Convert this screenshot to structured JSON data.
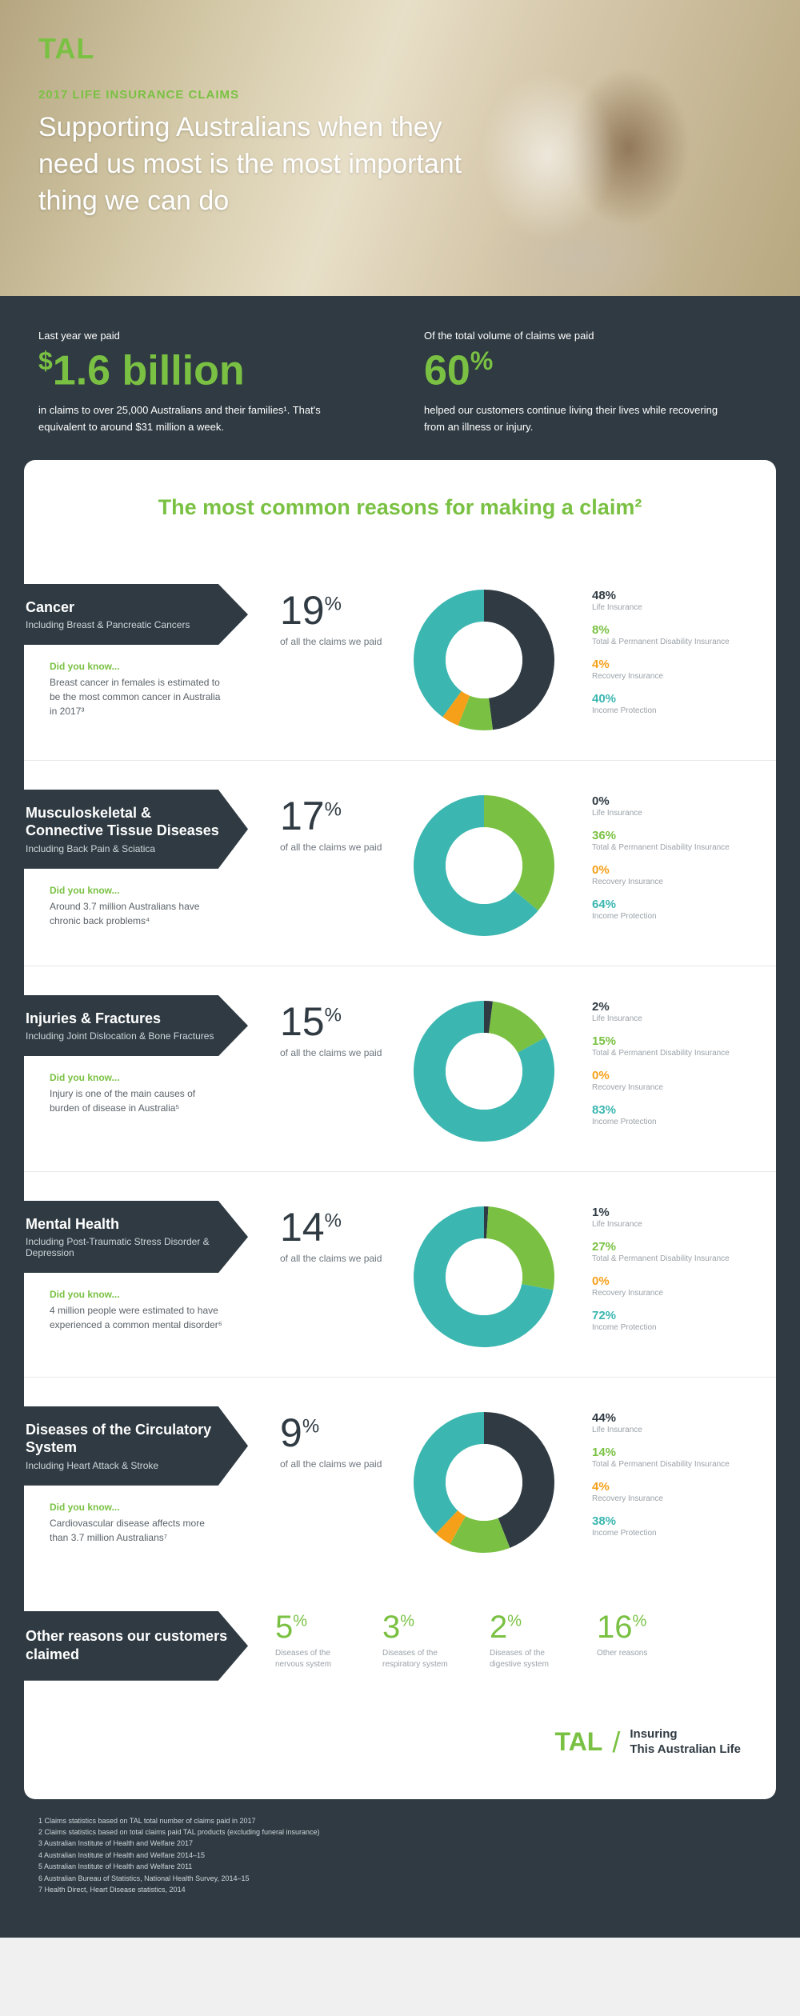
{
  "brand": {
    "name": "TAL",
    "accent": "#7ac143"
  },
  "hero": {
    "eyebrow": "2017 LIFE INSURANCE CLAIMS",
    "title": "Supporting Australians when they need us most is the most important thing we can do"
  },
  "stats_bar": {
    "left": {
      "eyebrow": "Last year we paid",
      "currency": "$",
      "value": "1.6 billion",
      "body": "in claims to over 25,000 Australians and their families¹. That's equivalent to around $31 million a week."
    },
    "right": {
      "eyebrow": "Of the total volume of claims we paid",
      "value": "60",
      "unit": "%",
      "body": "helped our customers continue living their lives while recovering from an illness or injury."
    }
  },
  "card": {
    "title": "The most common reasons for making a claim²",
    "colors": {
      "dark": "#2f3a42",
      "green": "#7ac143",
      "orange": "#f6a01a",
      "teal": "#3bb6b0",
      "hole": "#ffffff"
    },
    "breakdown_labels": {
      "life": "Life Insurance",
      "tpd": "Total & Permanent Disability Insurance",
      "recovery": "Recovery Insurance",
      "income": "Income Protection"
    },
    "pct_sub": "of all the claims we paid",
    "dyk_label": "Did you know...",
    "reasons": [
      {
        "title": "Cancer",
        "subtitle": "Including Breast & Pancreatic Cancers",
        "dyk": "Breast cancer in females is estimated to be the most common cancer in Australia in 2017³",
        "pct": 19,
        "breakdown": {
          "life": 48,
          "tpd": 8,
          "recovery": 4,
          "income": 40
        }
      },
      {
        "title": "Musculoskeletal & Connective Tissue Diseases",
        "subtitle": "Including Back Pain & Sciatica",
        "dyk": "Around 3.7 million Australians have chronic back problems⁴",
        "pct": 17,
        "breakdown": {
          "life": 0,
          "tpd": 36,
          "recovery": 0,
          "income": 64
        }
      },
      {
        "title": "Injuries & Fractures",
        "subtitle": "Including Joint Dislocation & Bone Fractures",
        "dyk": "Injury is one of the main causes of burden of disease in Australia⁵",
        "pct": 15,
        "breakdown": {
          "life": 2,
          "tpd": 15,
          "recovery": 0,
          "income": 83
        }
      },
      {
        "title": "Mental Health",
        "subtitle": "Including Post-Traumatic Stress Disorder & Depression",
        "dyk": "4 million people were estimated to have experienced a common mental disorder⁶",
        "pct": 14,
        "breakdown": {
          "life": 1,
          "tpd": 27,
          "recovery": 0,
          "income": 72
        }
      },
      {
        "title": "Diseases of the Circulatory System",
        "subtitle": "Including Heart Attack & Stroke",
        "dyk": "Cardiovascular disease affects more than 3.7 million Australians⁷",
        "pct": 9,
        "breakdown": {
          "life": 44,
          "tpd": 14,
          "recovery": 4,
          "income": 38
        }
      }
    ],
    "other": {
      "title": "Other reasons our customers claimed",
      "items": [
        {
          "pct": 5,
          "label": "Diseases of the nervous system"
        },
        {
          "pct": 3,
          "label": "Diseases of the respiratory system"
        },
        {
          "pct": 2,
          "label": "Diseases of the digestive system"
        },
        {
          "pct": 16,
          "label": "Other reasons"
        }
      ]
    }
  },
  "footer": {
    "notes": [
      "1   Claims statistics based on TAL total number of claims paid in 2017",
      "2   Claims statistics based on total claims paid TAL products (excluding funeral insurance)",
      "3   Australian Institute of Health and Welfare 2017",
      "4   Australian Institute of Health and Welfare 2014–15",
      "5   Australian Institute of Health and Welfare 2011",
      "6   Australian Bureau of Statistics, National Health Survey, 2014–15",
      "7   Health Direct, Heart Disease statistics, 2014"
    ],
    "tagline1": "Insuring",
    "tagline2": "This Australian Life"
  }
}
